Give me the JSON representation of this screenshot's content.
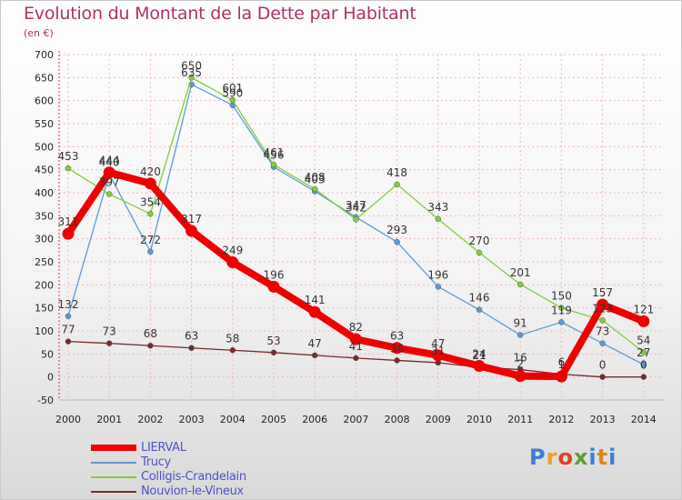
{
  "title": "Evolution du Montant de la Dette par Habitant",
  "unit": "(en €)",
  "logo_text": "Proxiti",
  "colors": {
    "title": "#b0306a",
    "grid": "#f2b6c2",
    "legend_text": "#5050c8"
  },
  "chart_data": {
    "type": "line",
    "title": "Evolution du Montant de la Dette par Habitant",
    "subtitle": "(en €)",
    "xlabel": "",
    "ylabel": "",
    "ylim": [
      -50,
      700
    ],
    "grid": true,
    "legend_position": "bottom-left",
    "x": [
      "2000",
      "2001",
      "2002",
      "2003",
      "2004",
      "2005",
      "2006",
      "2007",
      "2008",
      "2009",
      "2010",
      "2011",
      "2012",
      "2013",
      "2014"
    ],
    "y_ticks": [
      -50,
      0,
      50,
      100,
      150,
      200,
      250,
      300,
      350,
      400,
      450,
      500,
      550,
      600,
      650,
      700
    ],
    "series": [
      {
        "name": "LIERVAL",
        "color": "#ee0000",
        "values": [
          311,
          444,
          420,
          317,
          249,
          196,
          141,
          82,
          63,
          47,
          24,
          2,
          1,
          157,
          121
        ],
        "labels": [
          "311",
          "444",
          "420",
          "317",
          "249",
          "196",
          "141",
          "82",
          "63",
          "47",
          "24",
          "2",
          "1",
          "157",
          "121"
        ]
      },
      {
        "name": "Trucy",
        "color": "#5b9bd5",
        "values": [
          132,
          440,
          272,
          635,
          590,
          456,
          403,
          347,
          293,
          196,
          146,
          91,
          119,
          73,
          27
        ],
        "labels": [
          "132",
          "440",
          "272",
          "635",
          "590",
          "456",
          "403",
          "347",
          "293",
          "196",
          "146",
          "91",
          "119",
          "73",
          "27"
        ]
      },
      {
        "name": "Colligis-Crandelain",
        "color": "#7ecf3a",
        "values": [
          453,
          397,
          354,
          650,
          601,
          461,
          408,
          342,
          418,
          343,
          270,
          201,
          150,
          123,
          54
        ],
        "labels": [
          "453",
          "397",
          "354",
          "650",
          "601",
          "461",
          "408",
          "342",
          "418",
          "343",
          "270",
          "201",
          "150",
          "123",
          "54"
        ]
      },
      {
        "name": "Nouvion-le-Vineux",
        "color": "#7a2a2a",
        "values": [
          77,
          73,
          68,
          63,
          58,
          53,
          47,
          41,
          36,
          31,
          21,
          16,
          6,
          0,
          0
        ],
        "labels": [
          "77",
          "73",
          "68",
          "63",
          "58",
          "53",
          "47",
          "41",
          "36",
          "31",
          "21",
          "16",
          "6",
          "0",
          "0"
        ]
      }
    ]
  }
}
